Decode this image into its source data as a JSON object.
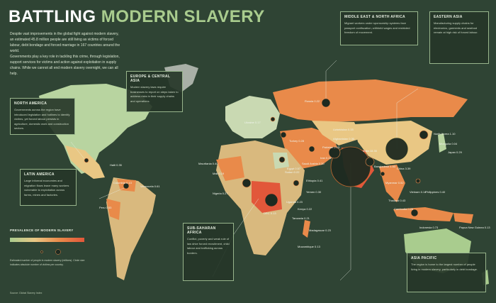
{
  "title": {
    "part1": "BATTLING",
    "part2": "MODERN SLAVERY"
  },
  "intro": {
    "col1": "Despite vast improvements in the global fight against modern slavery, an estimated 45.8 million people are still living as victims of forced labour, debt bondage and forced marriage in 167 countries around the world.",
    "col2": "Governments play a key role in tackling this crime, through legislation, support services for victims and action against exploitation in supply chains. While we cannot all end modern slavery overnight, we can all help."
  },
  "boxes": {
    "north_america": {
      "title": "NORTH AMERICA",
      "body": "Governments across the region have introduced legislation and hotlines to identify victims, yet forced labour persists in agriculture, domestic work and construction sectors."
    },
    "latin_america": {
      "title": "LATIN AMERICA",
      "body": "Large informal economies and migration flows leave many workers vulnerable to exploitation across farms, mines and factories."
    },
    "europe": {
      "title": "EUROPE & CENTRAL ASIA",
      "body": "Modern slavery laws require businesses to report on steps taken to address risks in their supply chains and operations."
    },
    "middle_east": {
      "title": "MIDDLE EAST & NORTH AFRICA",
      "body": "Migrant workers under sponsorship systems face passport confiscation, withheld wages and restricted freedom of movement."
    },
    "africa": {
      "title": "SUB-SAHARAN AFRICA",
      "body": "Conflict, poverty and weak rule of law drive forced recruitment, child labour and trafficking across borders."
    },
    "eastern_asia": {
      "title": "EASTERN ASIA",
      "body": "Manufacturing supply chains for electronics, garments and seafood remain at high risk of forced labour."
    },
    "asia_pacific": {
      "title": "ASIA PACIFIC",
      "body": "The region is home to the largest number of people living in modern slavery, particularly in debt bondage."
    }
  },
  "labels": [
    {
      "text": "Peru 0.53"
    },
    {
      "text": "Colombia 0.13"
    },
    {
      "text": "Venezuela 0.61"
    },
    {
      "text": "Haiti 0.35"
    },
    {
      "text": "Mauritania 0.40"
    },
    {
      "text": "Mali 0.19"
    },
    {
      "text": "Nigeria 0.27"
    },
    {
      "text": "DRC 0.13"
    },
    {
      "text": "Sudan 0.22"
    },
    {
      "text": "Ethiopia 0.41"
    },
    {
      "text": "Kenya 0.22"
    },
    {
      "text": "Uganda 0.23"
    },
    {
      "text": "Tanzania 0.21"
    },
    {
      "text": "Madagascar 0.23"
    },
    {
      "text": "Mozambique 0.13"
    },
    {
      "text": "Russia 0.22"
    },
    {
      "text": "Ukraine 0.17"
    },
    {
      "text": "Turkey 0.28"
    },
    {
      "text": "Iran 0.22"
    },
    {
      "text": "Pakistan 2.13"
    },
    {
      "text": "Afghanistan 0.30"
    },
    {
      "text": "Uzbekistan 0.15"
    },
    {
      "text": "India 18.35"
    },
    {
      "text": "Bangladesh 1.53"
    },
    {
      "text": "Myanmar 0.52"
    },
    {
      "text": "Thailand 0.43"
    },
    {
      "text": "Cambodia 0.26"
    },
    {
      "text": "Vietnam 0.14"
    },
    {
      "text": "China 3.39"
    },
    {
      "text": "North Korea 1.10"
    },
    {
      "text": "Japan 0.29"
    },
    {
      "text": "Indonesia 0.73"
    },
    {
      "text": "Philippines 0.40"
    },
    {
      "text": "Papua New Guinea 0.13"
    },
    {
      "text": "Mongolia 0.04"
    },
    {
      "text": "Egypt 0.57"
    },
    {
      "text": "Saudi Arabia 0.20"
    },
    {
      "text": "Yemen 0.30"
    }
  ],
  "legend": {
    "title": "PREVALENCE OF MODERN SLAVERY",
    "note": "Estimated number of people in modern slavery (millions). Circle size indicates absolute number of victims per country."
  },
  "credit": "Source: Global Slavery Index",
  "colors": {
    "ocean": "#2f4434",
    "low": "#a9cc8e",
    "mid": "#e9c784",
    "high": "#e98a4a",
    "veryhigh": "#e2573a"
  }
}
